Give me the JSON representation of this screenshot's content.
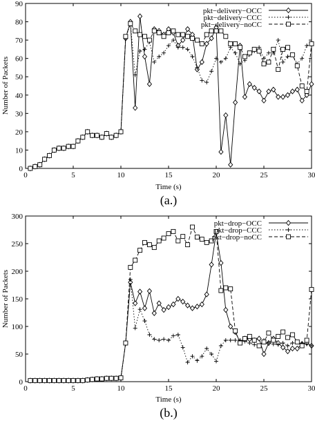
{
  "chart_data": [
    {
      "panel": "a",
      "type": "line",
      "caption": "(a.)",
      "xlabel": "Time (s)",
      "ylabel": "Number of Packets",
      "xlim": [
        0,
        30
      ],
      "ylim": [
        0,
        90
      ],
      "xticks": [
        "0",
        "5",
        "10",
        "15",
        "20",
        "25",
        "30"
      ],
      "yticks": [
        "0",
        "10",
        "20",
        "30",
        "40",
        "50",
        "60",
        "70",
        "80",
        "90"
      ],
      "legend_position": "top-right",
      "grid": false,
      "series": [
        {
          "name": "pkt−delivery−OCC",
          "style": "solid",
          "marker": "diamond",
          "x": [
            0.5,
            1,
            1.5,
            2,
            2.5,
            3,
            3.5,
            4,
            4.5,
            5,
            5.5,
            6,
            6.5,
            7,
            7.5,
            8,
            8.5,
            9,
            9.5,
            10,
            10.5,
            11,
            11.5,
            12,
            12.5,
            13,
            13.5,
            14,
            14.5,
            15,
            15.5,
            16,
            16.5,
            17,
            17.5,
            18,
            18.5,
            19,
            19.5,
            20,
            20.5,
            21,
            21.5,
            22,
            22.5,
            23,
            23.5,
            24,
            24.5,
            25,
            25.5,
            26,
            26.5,
            27,
            27.5,
            28,
            28.5,
            29,
            29.5,
            30
          ],
          "y": [
            0,
            1,
            2,
            5,
            7,
            10,
            11,
            11,
            12,
            12,
            15,
            17,
            20,
            18,
            18,
            17,
            19,
            17,
            18,
            20,
            71,
            80,
            33,
            83,
            61,
            46,
            76,
            75,
            73,
            76,
            74,
            67,
            70,
            76,
            73,
            54,
            58,
            68,
            71,
            77,
            9,
            29,
            2,
            36,
            67,
            39,
            46,
            44,
            42,
            37,
            42,
            43,
            39,
            39,
            40,
            42,
            43,
            37,
            40,
            46
          ]
        },
        {
          "name": "pkt−delivery−CCC",
          "style": "dotted",
          "marker": "plus",
          "x": [
            0.5,
            1,
            1.5,
            2,
            2.5,
            3,
            3.5,
            4,
            4.5,
            5,
            5.5,
            6,
            6.5,
            7,
            7.5,
            8,
            8.5,
            9,
            9.5,
            10,
            10.5,
            11,
            11.5,
            12,
            12.5,
            13,
            13.5,
            14,
            14.5,
            15,
            15.5,
            16,
            16.5,
            17,
            17.5,
            18,
            18.5,
            19,
            19.5,
            20,
            20.5,
            21,
            21.5,
            22,
            22.5,
            23,
            23.5,
            24,
            24.5,
            25,
            25.5,
            26,
            26.5,
            27,
            27.5,
            28,
            28.5,
            29,
            29.5,
            30
          ],
          "y": [
            0,
            1,
            2,
            5,
            7,
            10,
            11,
            11,
            12,
            12,
            15,
            17,
            20,
            18,
            18,
            17,
            19,
            17,
            18,
            20,
            71,
            79,
            51,
            64,
            65,
            69,
            58,
            61,
            63,
            67,
            70,
            66,
            66,
            65,
            61,
            55,
            48,
            47,
            53,
            60,
            58,
            60,
            66,
            63,
            57,
            59,
            62,
            64,
            66,
            60,
            63,
            63,
            70,
            58,
            61,
            62,
            57,
            60,
            67,
            68
          ]
        },
        {
          "name": "pkt−delivery−noCC",
          "style": "dashed",
          "marker": "square",
          "x": [
            0.5,
            1,
            1.5,
            2,
            2.5,
            3,
            3.5,
            4,
            4.5,
            5,
            5.5,
            6,
            6.5,
            7,
            7.5,
            8,
            8.5,
            9,
            9.5,
            10,
            10.5,
            11,
            11.5,
            12,
            12.5,
            13,
            13.5,
            14,
            14.5,
            15,
            15.5,
            16,
            16.5,
            17,
            17.5,
            18,
            18.5,
            19,
            19.5,
            20,
            20.5,
            21,
            21.5,
            22,
            22.5,
            23,
            23.5,
            24,
            24.5,
            25,
            25.5,
            26,
            26.5,
            27,
            27.5,
            28,
            28.5,
            29,
            29.5,
            30
          ],
          "y": [
            0,
            1,
            2,
            5,
            7,
            10,
            11,
            11,
            12,
            12,
            15,
            17,
            20,
            18,
            18,
            17,
            19,
            17,
            18,
            20,
            72,
            79,
            75,
            73,
            72,
            70,
            75,
            74,
            72,
            74,
            75,
            73,
            73,
            72,
            71,
            70,
            68,
            73,
            75,
            75,
            75,
            72,
            68,
            68,
            66,
            61,
            63,
            65,
            64,
            57,
            58,
            65,
            54,
            65,
            66,
            62,
            56,
            45,
            42,
            68
          ]
        }
      ]
    },
    {
      "panel": "b",
      "type": "line",
      "caption": "(b.)",
      "xlabel": "Time (s)",
      "ylabel": "Number of Packets",
      "xlim": [
        0,
        30
      ],
      "ylim": [
        0,
        300
      ],
      "xticks": [
        "0",
        "5",
        "10",
        "15",
        "20",
        "25",
        "30"
      ],
      "yticks": [
        "0",
        "50",
        "100",
        "150",
        "200",
        "250",
        "300"
      ],
      "legend_position": "top-right",
      "grid": false,
      "series": [
        {
          "name": "pkt−drop−OCC",
          "style": "solid",
          "marker": "diamond",
          "x": [
            0.5,
            1,
            1.5,
            2,
            2.5,
            3,
            3.5,
            4,
            4.5,
            5,
            5.5,
            6,
            6.5,
            7,
            7.5,
            8,
            8.5,
            9,
            9.5,
            10,
            10.5,
            11,
            11.5,
            12,
            12.5,
            13,
            13.5,
            14,
            14.5,
            15,
            15.5,
            16,
            16.5,
            17,
            17.5,
            18,
            18.5,
            19,
            19.5,
            20,
            20.5,
            21,
            21.5,
            22,
            22.5,
            23,
            23.5,
            24,
            24.5,
            25,
            25.5,
            26,
            26.5,
            27,
            27.5,
            28,
            28.5,
            29,
            29.5,
            30
          ],
          "y": [
            2,
            2,
            2,
            2,
            2,
            2,
            2,
            2,
            2,
            2,
            2,
            2,
            3,
            4,
            5,
            5,
            6,
            6,
            6,
            7,
            70,
            180,
            142,
            163,
            133,
            164,
            124,
            142,
            130,
            135,
            140,
            150,
            145,
            138,
            133,
            136,
            140,
            158,
            212,
            270,
            215,
            130,
            100,
            90,
            72,
            78,
            77,
            75,
            78,
            50,
            70,
            78,
            70,
            62,
            55,
            60,
            60,
            68,
            70,
            65
          ]
        },
        {
          "name": "pkt−drop−CCC",
          "style": "dotted",
          "marker": "plus",
          "x": [
            0.5,
            1,
            1.5,
            2,
            2.5,
            3,
            3.5,
            4,
            4.5,
            5,
            5.5,
            6,
            6.5,
            7,
            7.5,
            8,
            8.5,
            9,
            9.5,
            10,
            10.5,
            11,
            11.5,
            12,
            12.5,
            13,
            13.5,
            14,
            14.5,
            15,
            15.5,
            16,
            16.5,
            17,
            17.5,
            18,
            18.5,
            19,
            19.5,
            20,
            20.5,
            21,
            21.5,
            22,
            22.5,
            23,
            23.5,
            24,
            24.5,
            25,
            25.5,
            26,
            26.5,
            27,
            27.5,
            28,
            28.5,
            29,
            29.5,
            30
          ],
          "y": [
            2,
            2,
            2,
            2,
            2,
            2,
            2,
            2,
            2,
            2,
            2,
            2,
            3,
            4,
            5,
            5,
            6,
            6,
            6,
            7,
            70,
            185,
            97,
            131,
            110,
            85,
            77,
            75,
            77,
            75,
            83,
            85,
            62,
            35,
            46,
            38,
            46,
            60,
            50,
            37,
            65,
            75,
            75,
            75,
            75,
            73,
            70,
            67,
            65,
            75,
            70,
            68,
            67,
            70,
            65,
            70,
            72,
            70,
            68,
            65
          ]
        },
        {
          "name": "pkt−drop−noCC",
          "style": "dashed",
          "marker": "square",
          "x": [
            0.5,
            1,
            1.5,
            2,
            2.5,
            3,
            3.5,
            4,
            4.5,
            5,
            5.5,
            6,
            6.5,
            7,
            7.5,
            8,
            8.5,
            9,
            9.5,
            10,
            10.5,
            11,
            11.5,
            12,
            12.5,
            13,
            13.5,
            14,
            14.5,
            15,
            15.5,
            16,
            16.5,
            17,
            17.5,
            18,
            18.5,
            19,
            19.5,
            20,
            20.5,
            21,
            21.5,
            22,
            22.5,
            23,
            23.5,
            24,
            24.5,
            25,
            25.5,
            26,
            26.5,
            27,
            27.5,
            28,
            28.5,
            29,
            29.5,
            30
          ],
          "y": [
            2,
            2,
            2,
            2,
            2,
            2,
            2,
            2,
            2,
            2,
            2,
            2,
            3,
            4,
            5,
            5,
            6,
            6,
            6,
            7,
            70,
            207,
            220,
            238,
            252,
            248,
            243,
            255,
            260,
            268,
            272,
            255,
            263,
            248,
            280,
            262,
            258,
            252,
            255,
            272,
            165,
            170,
            168,
            92,
            70,
            78,
            82,
            75,
            65,
            72,
            88,
            75,
            82,
            90,
            80,
            85,
            72,
            65,
            75,
            167
          ]
        }
      ]
    }
  ]
}
